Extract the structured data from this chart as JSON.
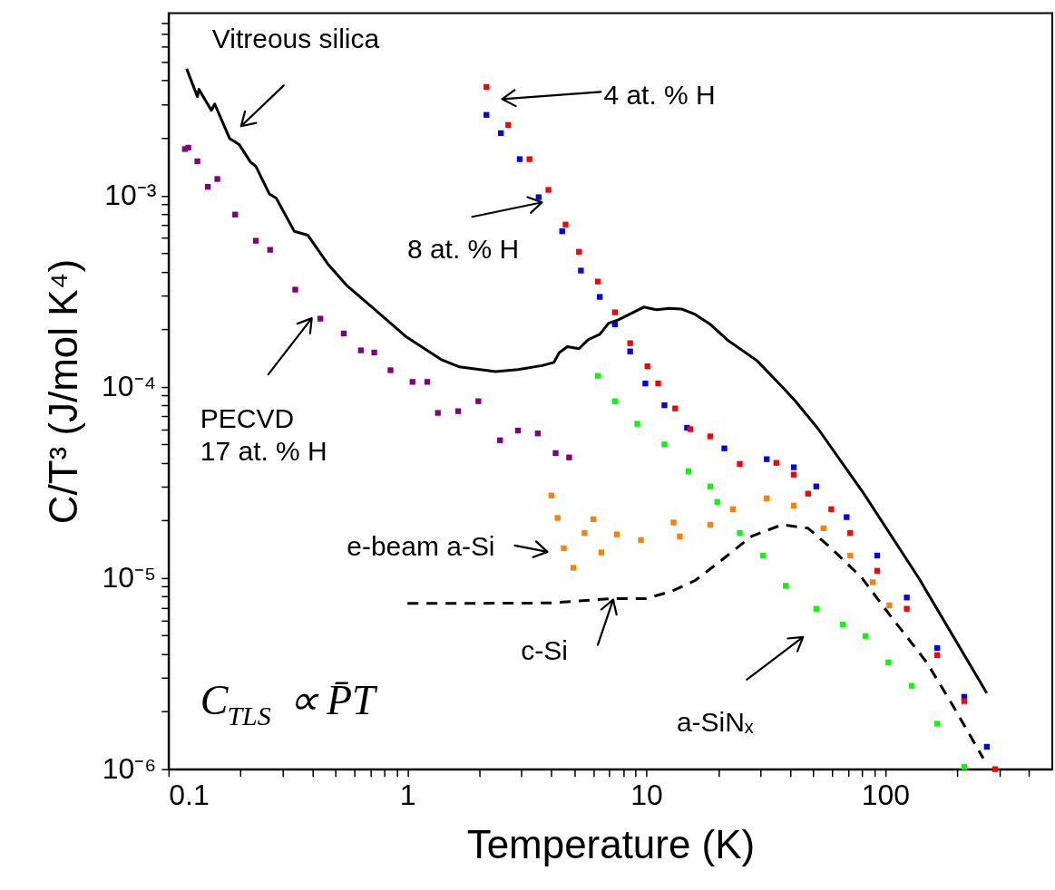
{
  "chart_data": {
    "type": "scatter",
    "marker": "square",
    "line_style": "solid",
    "log": "xy",
    "grid": false,
    "xlabel": "Temperature (K)",
    "ylabel": "C/T³ (J/mol K⁴)",
    "xlim": [
      0.1,
      500
    ],
    "ylim": [
      1e-06,
      0.009
    ],
    "xticks": [
      0.1,
      {
        "value": 0.2,
        "label": null
      },
      {
        "value": 0.3,
        "label": null
      },
      {
        "value": 0.4,
        "label": null
      },
      {
        "value": 0.5,
        "label": null
      },
      {
        "value": 0.6,
        "label": null
      },
      {
        "value": 0.7,
        "label": null
      },
      {
        "value": 0.8,
        "label": null
      },
      {
        "value": 0.9,
        "label": null
      },
      1,
      {
        "value": 2,
        "label": null
      },
      {
        "value": 3,
        "label": null
      },
      {
        "value": 4,
        "label": null
      },
      {
        "value": 5,
        "label": null
      },
      {
        "value": 6,
        "label": null
      },
      {
        "value": 7,
        "label": null
      },
      {
        "value": 8,
        "label": null
      },
      {
        "value": 9,
        "label": null
      },
      10,
      {
        "value": 20,
        "label": null
      },
      {
        "value": 30,
        "label": null
      },
      {
        "value": 40,
        "label": null
      },
      {
        "value": 50,
        "label": null
      },
      {
        "value": 60,
        "label": null
      },
      {
        "value": 70,
        "label": null
      },
      {
        "value": 80,
        "label": null
      },
      {
        "value": 90,
        "label": null
      },
      100,
      {
        "value": 200,
        "label": null
      },
      {
        "value": 300,
        "label": null
      },
      {
        "value": 400,
        "label": null
      }
    ],
    "yticks": [
      {
        "value": 1e-06,
        "label": "10⁻⁶"
      },
      {
        "value": 2e-06,
        "label": null
      },
      {
        "value": 3e-06,
        "label": null
      },
      {
        "value": 4e-06,
        "label": null
      },
      {
        "value": 5e-06,
        "label": null
      },
      {
        "value": 6e-06,
        "label": null
      },
      {
        "value": 7e-06,
        "label": null
      },
      {
        "value": 8e-06,
        "label": null
      },
      {
        "value": 9e-06,
        "label": null
      },
      {
        "value": 1e-05,
        "label": "10⁻⁵"
      },
      {
        "value": 2e-05,
        "label": null
      },
      {
        "value": 3e-05,
        "label": null
      },
      {
        "value": 4e-05,
        "label": null
      },
      {
        "value": 5e-05,
        "label": null
      },
      {
        "value": 6e-05,
        "label": null
      },
      {
        "value": 7e-05,
        "label": null
      },
      {
        "value": 8e-05,
        "label": null
      },
      {
        "value": 9e-05,
        "label": null
      },
      {
        "value": 0.0001,
        "label": "10⁻⁴"
      },
      {
        "value": 0.0002,
        "label": null
      },
      {
        "value": 0.0003,
        "label": null
      },
      {
        "value": 0.0004,
        "label": null
      },
      {
        "value": 0.0005,
        "label": null
      },
      {
        "value": 0.0006,
        "label": null
      },
      {
        "value": 0.0007,
        "label": null
      },
      {
        "value": 0.0008,
        "label": null
      },
      {
        "value": 0.0009,
        "label": null
      },
      {
        "value": 0.001,
        "label": "10⁻³"
      },
      {
        "value": 0.002,
        "label": null
      },
      {
        "value": 0.003,
        "label": null
      },
      {
        "value": 0.004,
        "label": null
      },
      {
        "value": 0.005,
        "label": null
      },
      {
        "value": 0.006,
        "label": null
      },
      {
        "value": 0.007,
        "label": null
      },
      {
        "value": 0.008,
        "label": null
      }
    ],
    "series": [
      {
        "type": "line",
        "marker": "none",
        "color": "#000000",
        "x": [
          0.119,
          0.132,
          0.134,
          0.151,
          0.156,
          0.18,
          0.198,
          0.22,
          0.232,
          0.264,
          0.282,
          0.336,
          0.383,
          0.463,
          0.555,
          0.798,
          0.99,
          1.38,
          1.65,
          2.34,
          2.9,
          3.66,
          4.1,
          4.32,
          4.67,
          5.22,
          5.7,
          6.38,
          6.95,
          7.64,
          9.75,
          11.0,
          12.5,
          14.0,
          16.0,
          18.5,
          21.8,
          29.0,
          37.0,
          42.1,
          52.2,
          81.3,
          138,
          266
        ],
        "values": [
          0.0046,
          0.00329,
          0.00359,
          0.00279,
          0.00301,
          0.00199,
          0.00184,
          0.0015,
          0.00142,
          0.00102,
          0.00097,
          0.00065,
          0.00062,
          0.00044,
          0.00034,
          0.00023,
          0.000182,
          0.000139,
          0.000127,
          0.00012,
          0.000123,
          0.000129,
          0.000134,
          0.000151,
          0.000162,
          0.000158,
          0.000176,
          0.000188,
          0.000215,
          0.000224,
          0.000261,
          0.000253,
          0.000257,
          0.000255,
          0.000239,
          0.000212,
          0.000176,
          0.000137,
          0.0001,
          8.4e-05,
          6.05e-05,
          2.76e-05,
          1e-05,
          2.5e-06
        ]
      },
      {
        "type": "line",
        "marker": "none",
        "line_style": "dashed",
        "color": "#000000",
        "x": [
          1.0,
          1.74,
          4.0,
          7.13,
          9.9,
          12.7,
          16.0,
          20.5,
          27.5,
          37,
          47.5,
          59.4,
          79.8,
          106,
          149,
          191,
          257
        ],
        "values": [
          7.36e-06,
          7.36e-06,
          7.4e-06,
          7.8e-06,
          7.8e-06,
          8.5e-06,
          9.7e-06,
          1.23e-05,
          1.65e-05,
          1.9e-05,
          1.82e-05,
          1.43e-05,
          1e-05,
          6.25e-06,
          3.62e-06,
          2.17e-06,
          1.14e-06
        ]
      },
      {
        "color": "#800080",
        "x": [
          0.117,
          0.121,
          0.132,
          0.146,
          0.16,
          0.19,
          0.232,
          0.266,
          0.339,
          0.432,
          0.541,
          0.638,
          0.726,
          0.849,
          1.05,
          1.21,
          1.34,
          1.63,
          1.98,
          2.44,
          2.9,
          3.51,
          4.17,
          4.75
        ],
        "values": [
          0.00175,
          0.00178,
          0.00151,
          0.00111,
          0.00122,
          0.000795,
          0.00058,
          0.00052,
          0.000322,
          0.000227,
          0.00019,
          0.000155,
          0.000151,
          0.000122,
          0.000106,
          0.000106,
          7.3e-05,
          7.45e-05,
          8.4e-05,
          5.25e-05,
          5.9e-05,
          5.7e-05,
          4.5e-05,
          4.27e-05
        ]
      },
      {
        "color": "#ff8000",
        "x": [
          4.0,
          4.25,
          4.51,
          4.95,
          5.51,
          6.0,
          6.48,
          7.52,
          9.49,
          13.0,
          13.8,
          18.5,
          23.0,
          31.9,
          41.4,
          55.1,
          71.3,
          88.5,
          104
        ],
        "values": [
          2.7e-05,
          2.06e-05,
          1.43e-05,
          1.13e-05,
          1.72e-05,
          2.03e-05,
          1.36e-05,
          1.69e-05,
          1.58e-05,
          1.95e-05,
          1.65e-05,
          1.9e-05,
          2.29e-05,
          2.61e-05,
          2.39e-05,
          1.82e-05,
          1.31e-05,
          9.5e-06,
          7.2e-06
        ]
      },
      {
        "color": "#00ff00",
        "x": [
          6.27,
          7.38,
          9.16,
          11.9,
          15.0,
          18.5,
          19.8,
          24.6,
          30.8,
          38.3,
          51.4,
          66.5,
          82.6,
          103,
          129,
          165,
          214
        ],
        "values": [
          0.000114,
          8.4e-05,
          6.4e-05,
          5e-05,
          3.62e-05,
          3.01e-05,
          2.5e-05,
          1.72e-05,
          1.31e-05,
          9.1e-06,
          6.9e-06,
          5.7e-06,
          4.97e-06,
          3.62e-06,
          2.73e-06,
          1.73e-06,
          1.03e-06
        ]
      },
      {
        "color": "#0000ff",
        "x": [
          2.14,
          2.46,
          2.95,
          3.54,
          4.44,
          5.32,
          6.38,
          7.38,
          8.55,
          9.9,
          11.9,
          14.8,
          21.2,
          31.9,
          41.4,
          51.4,
          68.9,
          92.5,
          123,
          165,
          214,
          266
        ],
        "values": [
          0.00264,
          0.00212,
          0.00155,
          0.00098,
          0.00065,
          0.000405,
          0.000295,
          0.000212,
          0.000153,
          0.000104,
          8e-05,
          6.1e-05,
          4.76e-05,
          4.18e-05,
          3.79e-05,
          3.01e-05,
          2.08e-05,
          1.31e-05,
          7.9e-06,
          4.3e-06,
          2.39e-06,
          1.31e-06
        ]
      },
      {
        "color": "#ff0000",
        "x": [
          2.14,
          2.64,
          3.24,
          3.89,
          4.59,
          5.22,
          6.27,
          7.38,
          8.55,
          10.1,
          11.2,
          13.2,
          15.3,
          18.5,
          24.6,
          35.0,
          41.4,
          47.5,
          59.4,
          71.3,
          92.5,
          123,
          165,
          214,
          288
        ],
        "values": [
          0.0037,
          0.00234,
          0.00155,
          0.00107,
          0.000705,
          0.000508,
          0.000355,
          0.000245,
          0.000169,
          0.000128,
          0.000104,
          7.7e-05,
          6e-05,
          5.5e-05,
          3.95e-05,
          4e-05,
          3.47e-05,
          2.76e-05,
          2.29e-05,
          1.72e-05,
          1.09e-05,
          6.9e-06,
          3.95e-06,
          2.27e-06,
          1e-06
        ]
      }
    ],
    "annotations": [
      "Vitreous silica",
      "4 at. % H",
      "8 at. % H",
      "PECVD\n17 at. % H",
      "e-beam a-Si",
      {
        "text": "c-Si",
        "x": 7.26,
        "y": 7.7e-06
      },
      "a-SiNₓ",
      "C$_{TLS}$ ∝ P̄T"
    ]
  }
}
